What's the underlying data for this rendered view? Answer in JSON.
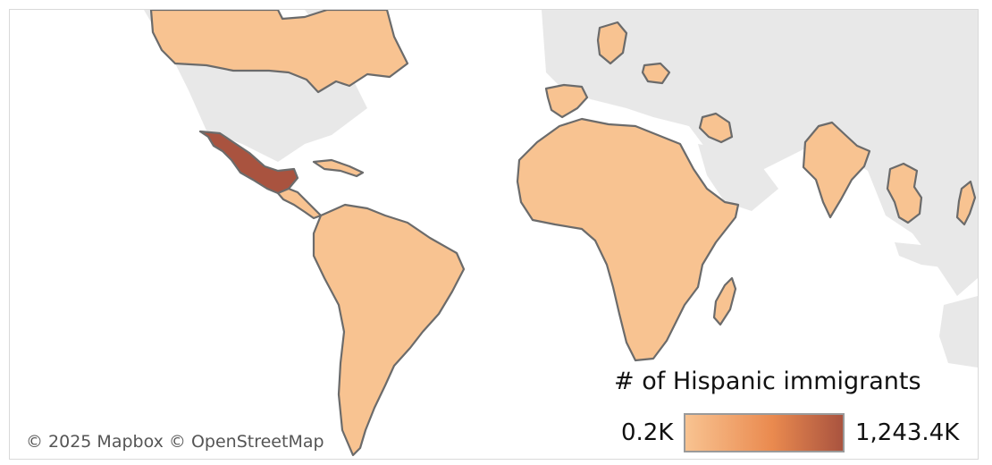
{
  "legend": {
    "title": "# of Hispanic immigrants",
    "min_label": "0.2K",
    "max_label": "1,243.4K",
    "min_color": "#f8c391",
    "mid_color": "#ea8a4f",
    "max_color": "#a9533f"
  },
  "attribution": {
    "mapbox": "© 2025 Mapbox",
    "osm": "© OpenStreetMap"
  },
  "colors": {
    "ocean": "#ffffff",
    "land_no_data": "#e8e8e8",
    "country_border": "#6b6b6b",
    "low_value": "#f8c391",
    "high_value": "#a9533f"
  },
  "regions": [
    {
      "name": "Canada",
      "level": "low"
    },
    {
      "name": "Mexico",
      "level": "high"
    },
    {
      "name": "Central America",
      "level": "low"
    },
    {
      "name": "Caribbean",
      "level": "low"
    },
    {
      "name": "South America",
      "level": "low"
    },
    {
      "name": "Africa",
      "level": "low"
    },
    {
      "name": "Madagascar",
      "level": "low"
    },
    {
      "name": "Spain",
      "level": "low"
    },
    {
      "name": "Germany",
      "level": "low"
    },
    {
      "name": "Romania",
      "level": "low"
    },
    {
      "name": "Iran",
      "level": "low"
    },
    {
      "name": "India",
      "level": "low"
    },
    {
      "name": "Southeast Asia",
      "level": "low"
    },
    {
      "name": "Philippines",
      "level": "low"
    }
  ]
}
